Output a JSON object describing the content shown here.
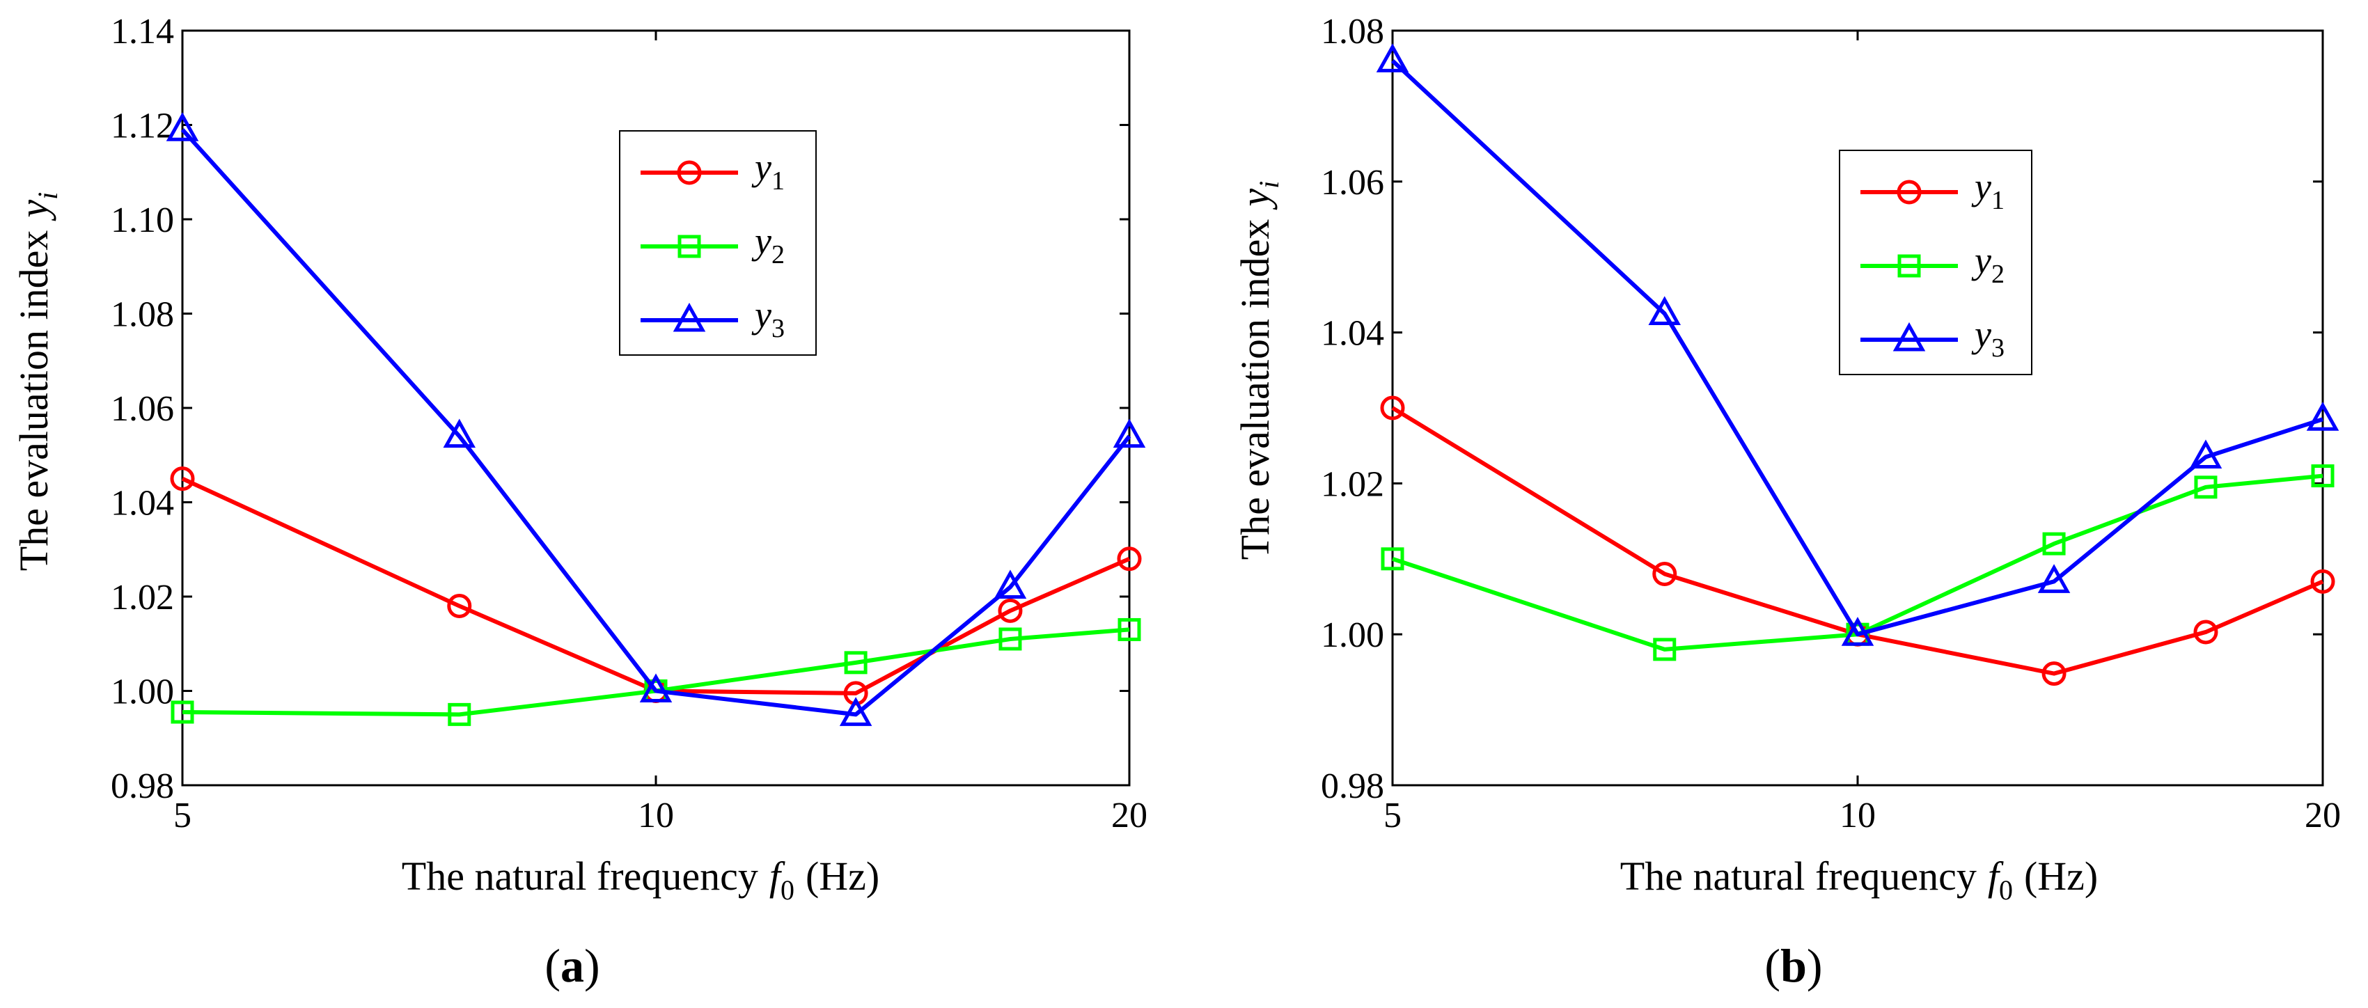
{
  "figure": {
    "panel_a_label": "a",
    "panel_b_label": "b",
    "open_paren": "(",
    "close_paren": ")"
  },
  "colors": {
    "y1": "#ff0000",
    "y2": "#00ff00",
    "y3": "#0000ff",
    "axis": "#000000"
  },
  "chart_data": [
    {
      "type": "line",
      "panel": "a",
      "title": "",
      "xlabel": "The natural frequency f0 (Hz)",
      "xlabel_main": "The natural frequency",
      "xlabel_symbol": "f",
      "xlabel_subscript": "0",
      "xlabel_unit": "(Hz)",
      "ylabel": "The evaluation index yi",
      "ylabel_main": "The evaluation index",
      "ylabel_symbol": "y",
      "ylabel_subscript": "i",
      "x_scale": "log",
      "xlim": [
        5,
        20
      ],
      "ylim": [
        0.98,
        1.14
      ],
      "x_ticks": [
        5,
        10,
        20
      ],
      "x_tick_labels": [
        "5",
        "10",
        "20"
      ],
      "y_ticks": [
        0.98,
        1.0,
        1.02,
        1.04,
        1.06,
        1.08,
        1.1,
        1.12,
        1.14
      ],
      "y_tick_labels": [
        "0.98",
        "1.00",
        "1.02",
        "1.04",
        "1.06",
        "1.08",
        "1.10",
        "1.12",
        "1.14"
      ],
      "grid": false,
      "legend_position": "top-center",
      "x": [
        5,
        7.5,
        10,
        13.4,
        16.8,
        20
      ],
      "series": [
        {
          "name": "y1",
          "symbol": "y",
          "subscript": "1",
          "marker": "circle",
          "color": "#ff0000",
          "values": [
            1.045,
            1.018,
            1.0,
            0.9995,
            1.017,
            1.028
          ]
        },
        {
          "name": "y2",
          "symbol": "y",
          "subscript": "2",
          "marker": "square",
          "color": "#00ff00",
          "values": [
            0.9955,
            0.995,
            1.0,
            1.006,
            1.011,
            1.013
          ]
        },
        {
          "name": "y3",
          "symbol": "y",
          "subscript": "3",
          "marker": "triangle",
          "color": "#0000ff",
          "values": [
            1.119,
            1.054,
            1.0,
            0.995,
            1.022,
            1.054
          ]
        }
      ]
    },
    {
      "type": "line",
      "panel": "b",
      "title": "",
      "xlabel": "The natural frequency f0 (Hz)",
      "xlabel_main": "The natural frequency",
      "xlabel_symbol": "f",
      "xlabel_subscript": "0",
      "xlabel_unit": "(Hz)",
      "ylabel": "The evaluation index yi",
      "ylabel_main": "The evaluation index",
      "ylabel_symbol": "y",
      "ylabel_subscript": "i",
      "x_scale": "log",
      "xlim": [
        5,
        20
      ],
      "ylim": [
        0.98,
        1.08
      ],
      "x_ticks": [
        5,
        10,
        20
      ],
      "x_tick_labels": [
        "5",
        "10",
        "20"
      ],
      "y_ticks": [
        0.98,
        1.0,
        1.02,
        1.04,
        1.06,
        1.08
      ],
      "y_tick_labels": [
        "0.98",
        "1.00",
        "1.02",
        "1.04",
        "1.06",
        "1.08"
      ],
      "grid": false,
      "legend_position": "top-center",
      "x": [
        5,
        7.5,
        10,
        13.4,
        16.8,
        20
      ],
      "series": [
        {
          "name": "y1",
          "symbol": "y",
          "subscript": "1",
          "marker": "circle",
          "color": "#ff0000",
          "values": [
            1.03,
            1.008,
            1.0,
            0.9948,
            1.0003,
            1.007
          ]
        },
        {
          "name": "y2",
          "symbol": "y",
          "subscript": "2",
          "marker": "square",
          "color": "#00ff00",
          "values": [
            1.01,
            0.998,
            1.0,
            1.012,
            1.0195,
            1.021
          ]
        },
        {
          "name": "y3",
          "symbol": "y",
          "subscript": "3",
          "marker": "triangle",
          "color": "#0000ff",
          "values": [
            1.076,
            1.0425,
            1.0,
            1.007,
            1.0235,
            1.0285
          ]
        }
      ]
    }
  ]
}
